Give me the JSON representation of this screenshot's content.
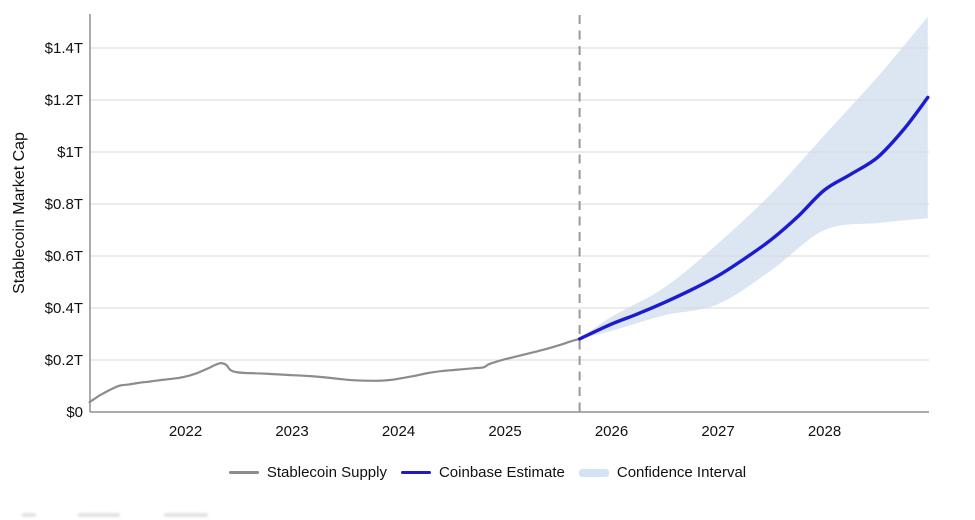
{
  "chart_data": {
    "type": "line",
    "title": "",
    "ylabel": "Stablecoin Market Cap",
    "xlabel": "",
    "x_ticks": [
      {
        "value": 2022,
        "label": "2022"
      },
      {
        "value": 2023,
        "label": "2023"
      },
      {
        "value": 2024,
        "label": "2024"
      },
      {
        "value": 2025,
        "label": "2025"
      },
      {
        "value": 2026,
        "label": "2026"
      },
      {
        "value": 2027,
        "label": "2027"
      },
      {
        "value": 2028,
        "label": "2028"
      }
    ],
    "y_ticks": [
      {
        "value": 0,
        "label": "$0"
      },
      {
        "value": 0.2,
        "label": "$0.2T"
      },
      {
        "value": 0.4,
        "label": "$0.4T"
      },
      {
        "value": 0.6,
        "label": "$0.6T"
      },
      {
        "value": 0.8,
        "label": "$0.8T"
      },
      {
        "value": 1.0,
        "label": "$1T"
      },
      {
        "value": 1.2,
        "label": "$1.2T"
      },
      {
        "value": 1.4,
        "label": "$1.4T"
      }
    ],
    "xlim": [
      2021.1,
      2028.97
    ],
    "ylim": [
      0,
      1.53
    ],
    "grid": "horizontal-only",
    "legend_position": "bottom-center",
    "forecast_divider_year": 2025.7,
    "units": "trillions USD",
    "series": [
      {
        "name": "Stablecoin Supply",
        "type": "line",
        "color": "#8c8c8c",
        "points": [
          [
            2021.1,
            0.038
          ],
          [
            2021.15,
            0.052
          ],
          [
            2021.2,
            0.065
          ],
          [
            2021.29,
            0.085
          ],
          [
            2021.38,
            0.101
          ],
          [
            2021.47,
            0.106
          ],
          [
            2021.56,
            0.112
          ],
          [
            2021.66,
            0.117
          ],
          [
            2021.75,
            0.122
          ],
          [
            2021.84,
            0.126
          ],
          [
            2021.92,
            0.13
          ],
          [
            2022.0,
            0.136
          ],
          [
            2022.09,
            0.147
          ],
          [
            2022.19,
            0.164
          ],
          [
            2022.28,
            0.181
          ],
          [
            2022.33,
            0.188
          ],
          [
            2022.38,
            0.182
          ],
          [
            2022.42,
            0.162
          ],
          [
            2022.47,
            0.154
          ],
          [
            2022.56,
            0.15
          ],
          [
            2022.66,
            0.149
          ],
          [
            2022.8,
            0.146
          ],
          [
            2022.99,
            0.142
          ],
          [
            2023.17,
            0.138
          ],
          [
            2023.31,
            0.133
          ],
          [
            2023.45,
            0.127
          ],
          [
            2023.59,
            0.122
          ],
          [
            2023.78,
            0.12
          ],
          [
            2023.92,
            0.123
          ],
          [
            2024.0,
            0.128
          ],
          [
            2024.14,
            0.138
          ],
          [
            2024.28,
            0.15
          ],
          [
            2024.42,
            0.158
          ],
          [
            2024.56,
            0.163
          ],
          [
            2024.7,
            0.168
          ],
          [
            2024.8,
            0.172
          ],
          [
            2024.85,
            0.184
          ],
          [
            2024.94,
            0.196
          ],
          [
            2025.0,
            0.203
          ],
          [
            2025.15,
            0.218
          ],
          [
            2025.33,
            0.236
          ],
          [
            2025.5,
            0.256
          ],
          [
            2025.62,
            0.272
          ],
          [
            2025.7,
            0.281
          ]
        ]
      },
      {
        "name": "Coinbase Estimate",
        "type": "line",
        "color": "#1b1bd0",
        "points": [
          [
            2025.7,
            0.281
          ],
          [
            2026.0,
            0.338
          ],
          [
            2026.25,
            0.378
          ],
          [
            2026.5,
            0.422
          ],
          [
            2026.75,
            0.47
          ],
          [
            2027.0,
            0.524
          ],
          [
            2027.25,
            0.59
          ],
          [
            2027.5,
            0.663
          ],
          [
            2027.75,
            0.752
          ],
          [
            2028.0,
            0.854
          ],
          [
            2028.25,
            0.915
          ],
          [
            2028.5,
            0.98
          ],
          [
            2028.75,
            1.09
          ],
          [
            2028.97,
            1.21
          ]
        ]
      },
      {
        "name": "Confidence Interval",
        "type": "band",
        "color": "#dce6f2",
        "upper": [
          [
            2025.7,
            0.281
          ],
          [
            2026.0,
            0.366
          ],
          [
            2026.5,
            0.48
          ],
          [
            2027.0,
            0.648
          ],
          [
            2027.5,
            0.84
          ],
          [
            2028.0,
            1.065
          ],
          [
            2028.5,
            1.29
          ],
          [
            2028.97,
            1.52
          ]
        ],
        "lower": [
          [
            2025.7,
            0.281
          ],
          [
            2026.0,
            0.312
          ],
          [
            2026.5,
            0.372
          ],
          [
            2027.0,
            0.415
          ],
          [
            2027.5,
            0.545
          ],
          [
            2028.0,
            0.7
          ],
          [
            2028.5,
            0.727
          ],
          [
            2028.97,
            0.745
          ]
        ]
      }
    ],
    "legend": [
      {
        "label": "Stablecoin Supply",
        "swatch": "thin-line",
        "color": "#8c8c8c"
      },
      {
        "label": "Coinbase Estimate",
        "swatch": "line",
        "color": "#1b1bd0"
      },
      {
        "label": "Confidence Interval",
        "swatch": "band",
        "color": "#d4e3f4"
      }
    ],
    "colors": {
      "grid": "#d8d8d8",
      "axis": "#8f8f8f",
      "divider": "#999999",
      "historical_line": "#8c8c8c",
      "estimate_line": "#1b1bd0",
      "confidence_band": "#dce6f2",
      "text": "#111111"
    }
  }
}
